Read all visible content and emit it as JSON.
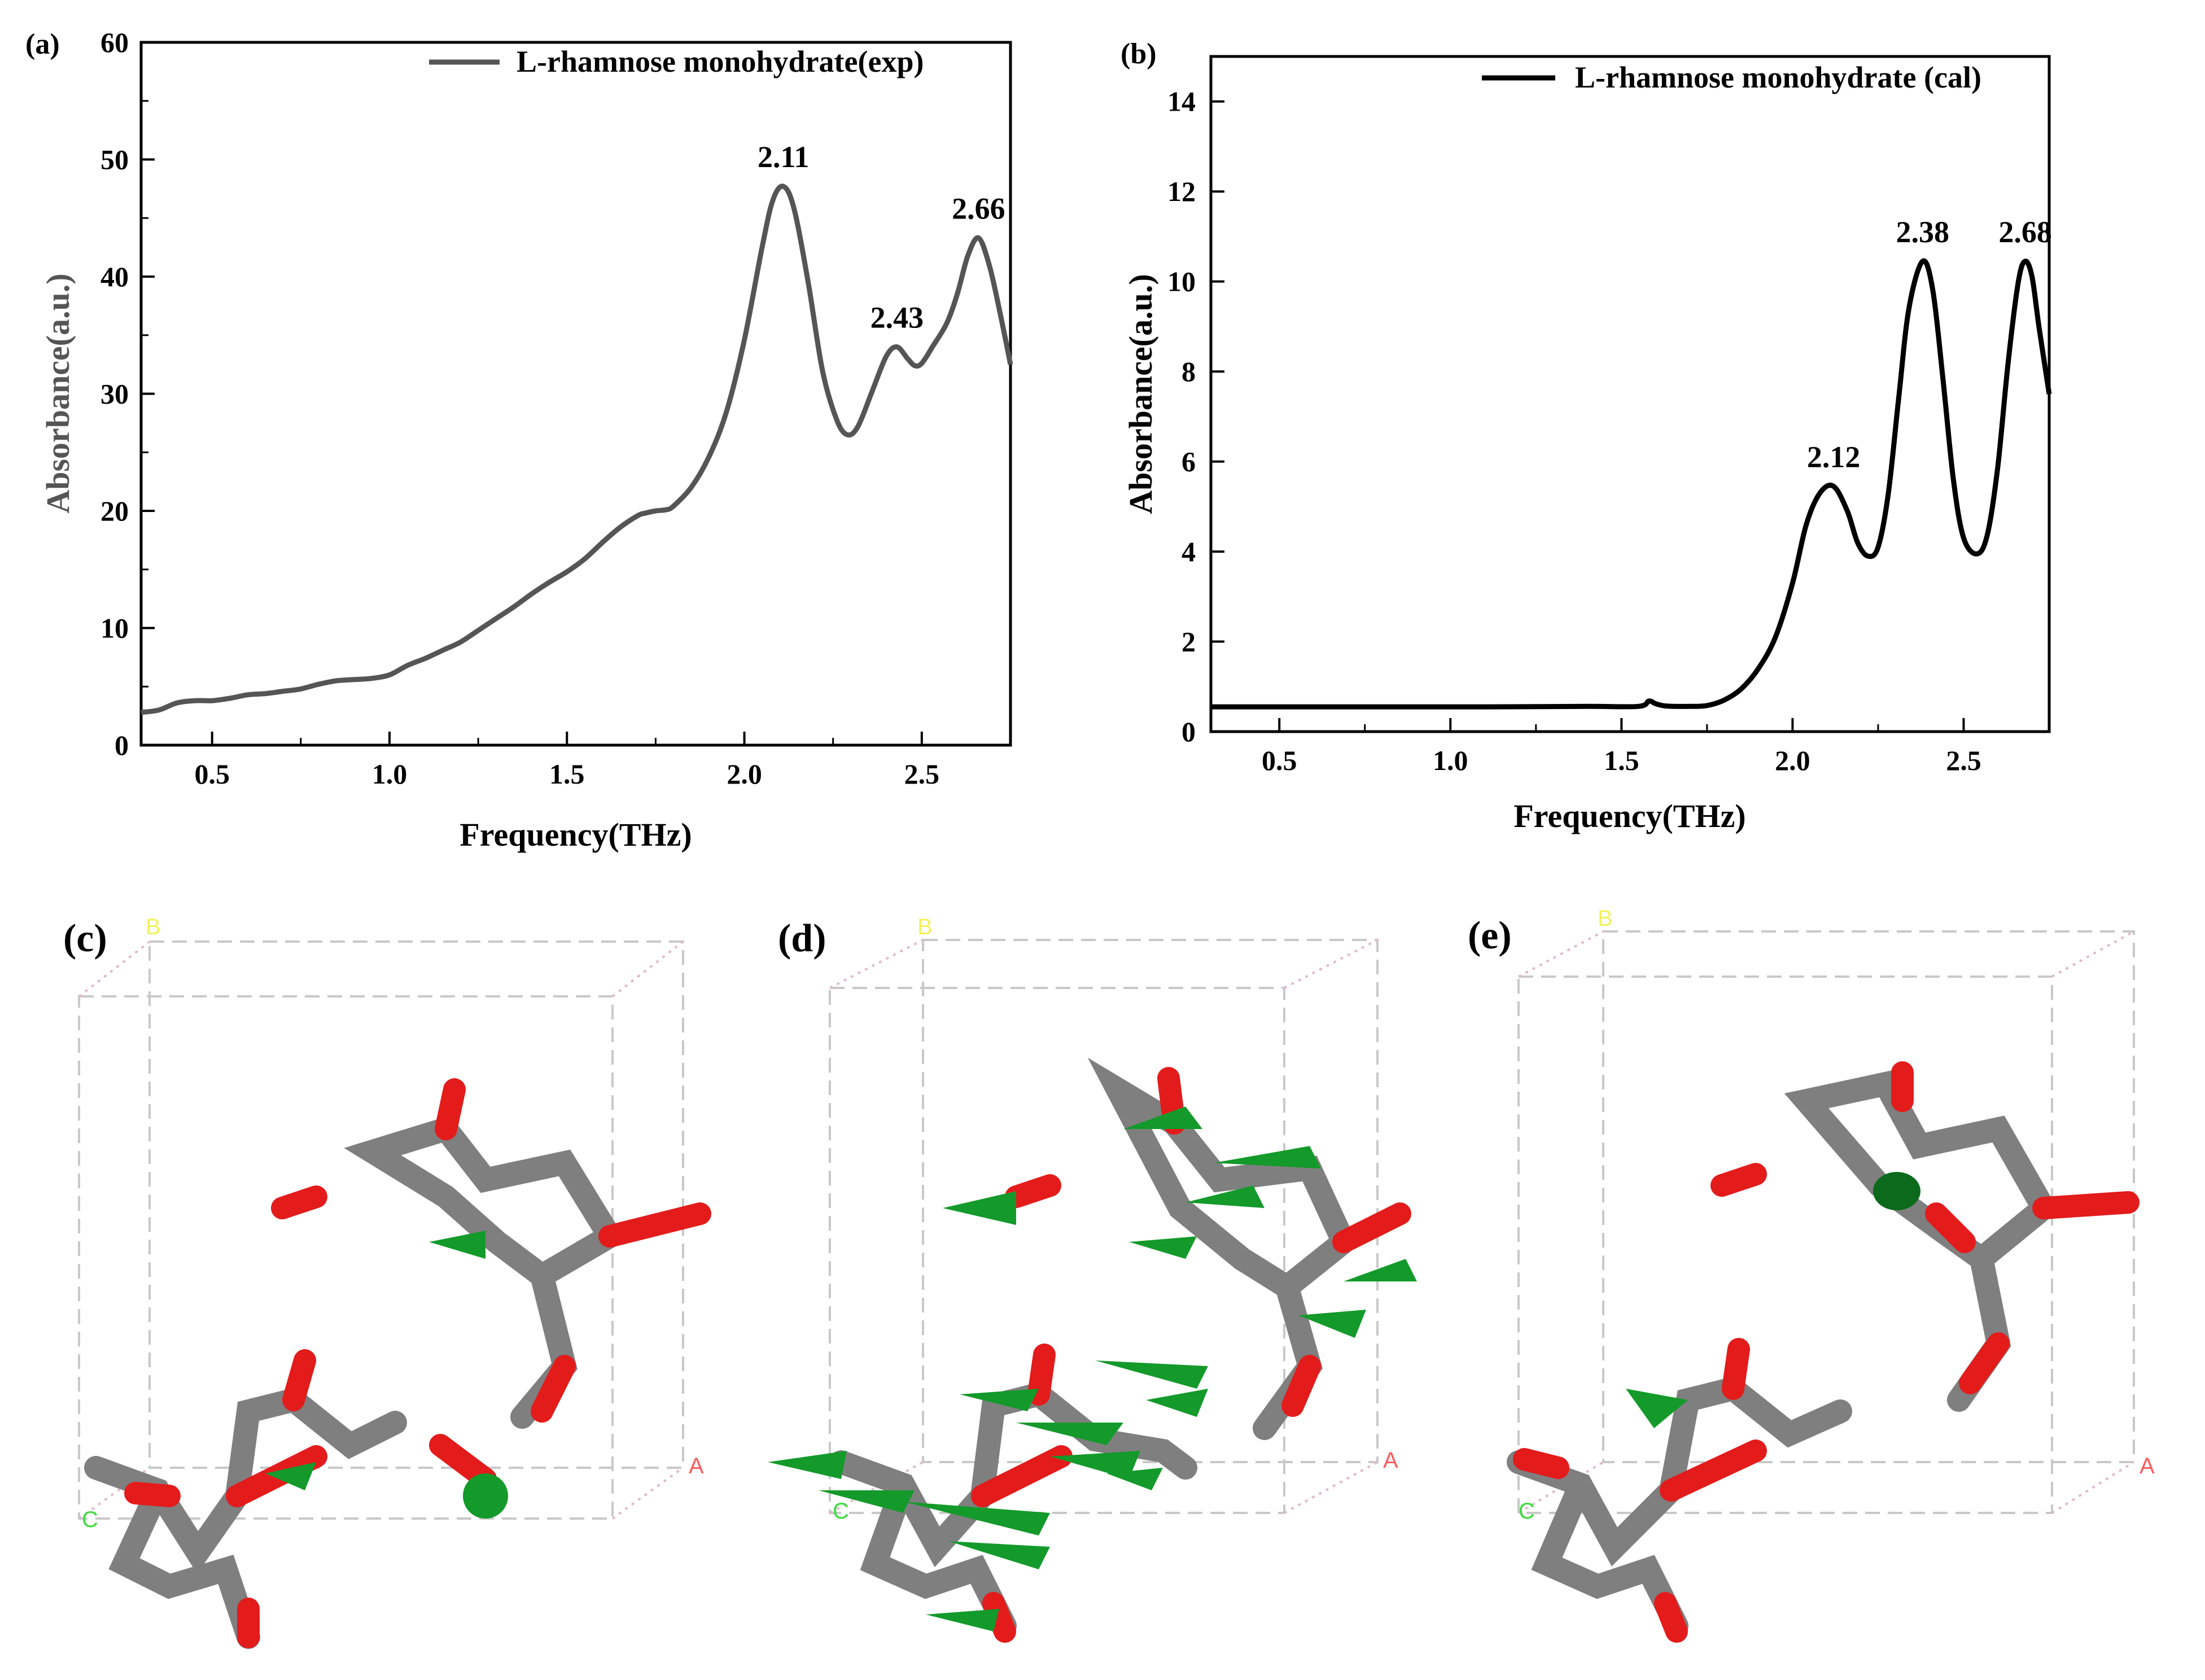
{
  "chart_data": [
    {
      "id": "a",
      "type": "line",
      "panel_label": "(a)",
      "title": "",
      "xlabel": "Frequency(THz)",
      "ylabel": "Absorbance(a.u.)",
      "xlim": [
        0.3,
        2.75
      ],
      "ylim": [
        0,
        60
      ],
      "xticks": [
        0.5,
        1.0,
        1.5,
        2.0,
        2.5
      ],
      "xtick_labels": [
        "0.5",
        "1.0",
        "1.5",
        "2.0",
        "2.5"
      ],
      "yticks": [
        0,
        10,
        20,
        30,
        40,
        50,
        60
      ],
      "ytick_labels": [
        "0",
        "10",
        "20",
        "30",
        "40",
        "50",
        "60"
      ],
      "legend": "top-right",
      "series": [
        {
          "name": "L-rhamnose monohydrate(exp)",
          "color": "#555555",
          "x": [
            0.3,
            0.35,
            0.4,
            0.45,
            0.5,
            0.55,
            0.6,
            0.65,
            0.7,
            0.75,
            0.8,
            0.85,
            0.9,
            0.95,
            1.0,
            1.05,
            1.1,
            1.15,
            1.2,
            1.25,
            1.3,
            1.35,
            1.4,
            1.45,
            1.5,
            1.55,
            1.6,
            1.65,
            1.7,
            1.72,
            1.75,
            1.78,
            1.8,
            1.85,
            1.9,
            1.95,
            2.0,
            2.05,
            2.08,
            2.11,
            2.14,
            2.18,
            2.22,
            2.26,
            2.29,
            2.32,
            2.36,
            2.4,
            2.43,
            2.46,
            2.48,
            2.5,
            2.53,
            2.57,
            2.6,
            2.63,
            2.66,
            2.69,
            2.72,
            2.75
          ],
          "values": [
            2.8,
            3.0,
            3.6,
            3.8,
            3.8,
            4.0,
            4.3,
            4.4,
            4.6,
            4.8,
            5.2,
            5.5,
            5.6,
            5.7,
            6.0,
            6.8,
            7.4,
            8.1,
            8.8,
            9.8,
            10.8,
            11.8,
            12.9,
            13.9,
            14.8,
            15.9,
            17.3,
            18.6,
            19.6,
            19.8,
            20.0,
            20.1,
            20.4,
            22.0,
            24.6,
            28.5,
            34.6,
            42.5,
            46.5,
            47.7,
            45.8,
            39.5,
            32.0,
            27.8,
            26.5,
            27.2,
            30.2,
            33.2,
            34.0,
            33.0,
            32.4,
            32.6,
            34.0,
            36.0,
            38.5,
            41.8,
            43.3,
            41.0,
            37.0,
            32.5
          ]
        }
      ],
      "annotations": [
        {
          "text": "2.11",
          "x": 2.11,
          "y": 47.7
        },
        {
          "text": "2.43",
          "x": 2.43,
          "y": 34.0
        },
        {
          "text": "2.66",
          "x": 2.66,
          "y": 43.3
        }
      ]
    },
    {
      "id": "b",
      "type": "line",
      "panel_label": "(b)",
      "title": "",
      "xlabel": "Frequency(THz)",
      "ylabel": "Absorbance(a.u.)",
      "xlim": [
        0.3,
        2.75
      ],
      "ylim": [
        0,
        15
      ],
      "xticks": [
        0.5,
        1.0,
        1.5,
        2.0,
        2.5
      ],
      "xtick_labels": [
        "0.5",
        "1.0",
        "1.5",
        "2.0",
        "2.5"
      ],
      "yticks": [
        0,
        2,
        4,
        6,
        8,
        10,
        12,
        14
      ],
      "ytick_labels": [
        "0",
        "2",
        "4",
        "6",
        "8",
        "10",
        "12",
        "14"
      ],
      "legend": "top-right",
      "series": [
        {
          "name": "L-rhamnose monohydrate (cal)",
          "color": "#000000",
          "x": [
            0.3,
            0.5,
            0.8,
            1.1,
            1.4,
            1.55,
            1.58,
            1.6,
            1.63,
            1.7,
            1.75,
            1.8,
            1.85,
            1.9,
            1.95,
            2.0,
            2.04,
            2.08,
            2.12,
            2.16,
            2.19,
            2.22,
            2.25,
            2.28,
            2.31,
            2.34,
            2.38,
            2.41,
            2.44,
            2.47,
            2.5,
            2.54,
            2.57,
            2.6,
            2.63,
            2.66,
            2.68,
            2.7,
            2.72,
            2.75
          ],
          "values": [
            0.55,
            0.55,
            0.55,
            0.55,
            0.56,
            0.56,
            0.68,
            0.62,
            0.57,
            0.56,
            0.58,
            0.7,
            0.95,
            1.4,
            2.1,
            3.3,
            4.6,
            5.3,
            5.45,
            4.9,
            4.2,
            3.9,
            4.1,
            5.3,
            7.4,
            9.4,
            10.45,
            9.8,
            7.8,
            5.6,
            4.3,
            3.95,
            4.4,
            5.9,
            8.2,
            10.0,
            10.45,
            10.1,
            9.0,
            7.5
          ]
        }
      ],
      "annotations": [
        {
          "text": "2.12",
          "x": 2.12,
          "y": 5.45
        },
        {
          "text": "2.38",
          "x": 2.38,
          "y": 10.45
        },
        {
          "text": "2.68",
          "x": 2.68,
          "y": 10.45
        }
      ]
    }
  ],
  "structures": [
    {
      "id": "c",
      "panel_label": "(c)",
      "axis_labels": {
        "a": "A",
        "b": "B",
        "c": "C"
      }
    },
    {
      "id": "d",
      "panel_label": "(d)",
      "axis_labels": {
        "a": "A",
        "b": "B",
        "c": "C"
      }
    },
    {
      "id": "e",
      "panel_label": "(e)",
      "axis_labels": {
        "a": "A",
        "b": "B",
        "c": "C"
      }
    }
  ],
  "colors": {
    "carbon": "#7f7f7f",
    "oxygen": "#e31b1b",
    "hydrogen": "#f2f2f2",
    "arrow": "#139a2a",
    "axis_a": "#ff5a5a",
    "axis_b": "#f2f25a",
    "axis_c": "#3ddc3d"
  }
}
